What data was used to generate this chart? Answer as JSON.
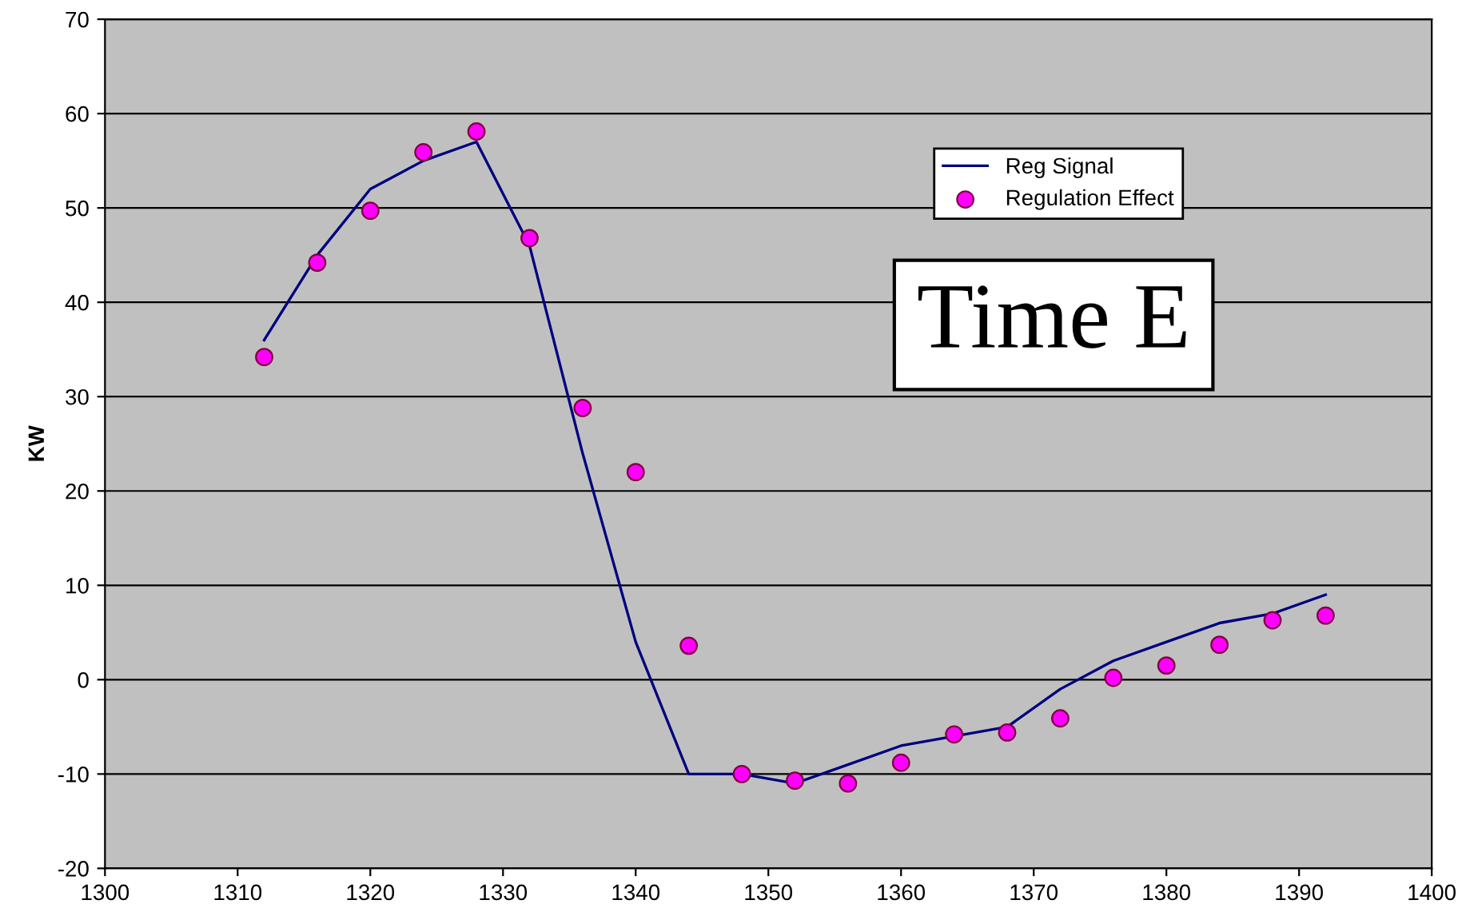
{
  "chart_data": {
    "type": "line",
    "ylabel": "KW",
    "annotations": [
      "Time E"
    ],
    "xlim": [
      1300,
      1400
    ],
    "xticks": [
      1300,
      1310,
      1320,
      1330,
      1340,
      1350,
      1360,
      1370,
      1380,
      1390,
      1400
    ],
    "ylim": [
      -20,
      70
    ],
    "yticks": [
      -20,
      -10,
      0,
      10,
      20,
      30,
      40,
      50,
      60,
      70
    ],
    "grid": "y",
    "legend": "top right",
    "series": [
      {
        "name": "Reg Signal",
        "color": "#000080",
        "marker": "none",
        "line_style": "solid",
        "x": [
          1312,
          1316,
          1320,
          1324,
          1328,
          1332,
          1336,
          1340,
          1344,
          1348,
          1352,
          1356,
          1360,
          1364,
          1368,
          1372,
          1376,
          1380,
          1384,
          1388,
          1392
        ],
        "values": [
          36,
          45,
          52,
          55,
          57,
          46,
          24,
          4,
          -10,
          -10,
          -11,
          -9,
          -7,
          -6,
          -5,
          -1,
          2,
          4,
          6,
          7,
          9
        ]
      },
      {
        "name": "Regulation Effect",
        "type": "scatter",
        "color": "#ff00ff",
        "marker": "circle",
        "x": [
          1312,
          1316,
          1320,
          1324,
          1328,
          1332,
          1336,
          1340,
          1344,
          1348,
          1352,
          1356,
          1360,
          1364,
          1368,
          1372,
          1376,
          1380,
          1384,
          1388,
          1392
        ],
        "values": [
          34.2,
          44.2,
          49.7,
          55.9,
          58.1,
          46.8,
          28.8,
          22.0,
          3.6,
          -10,
          -10.7,
          -11,
          -8.8,
          -5.8,
          -5.6,
          -4.1,
          0.2,
          1.5,
          3.7,
          6.3,
          6.8
        ]
      }
    ]
  }
}
